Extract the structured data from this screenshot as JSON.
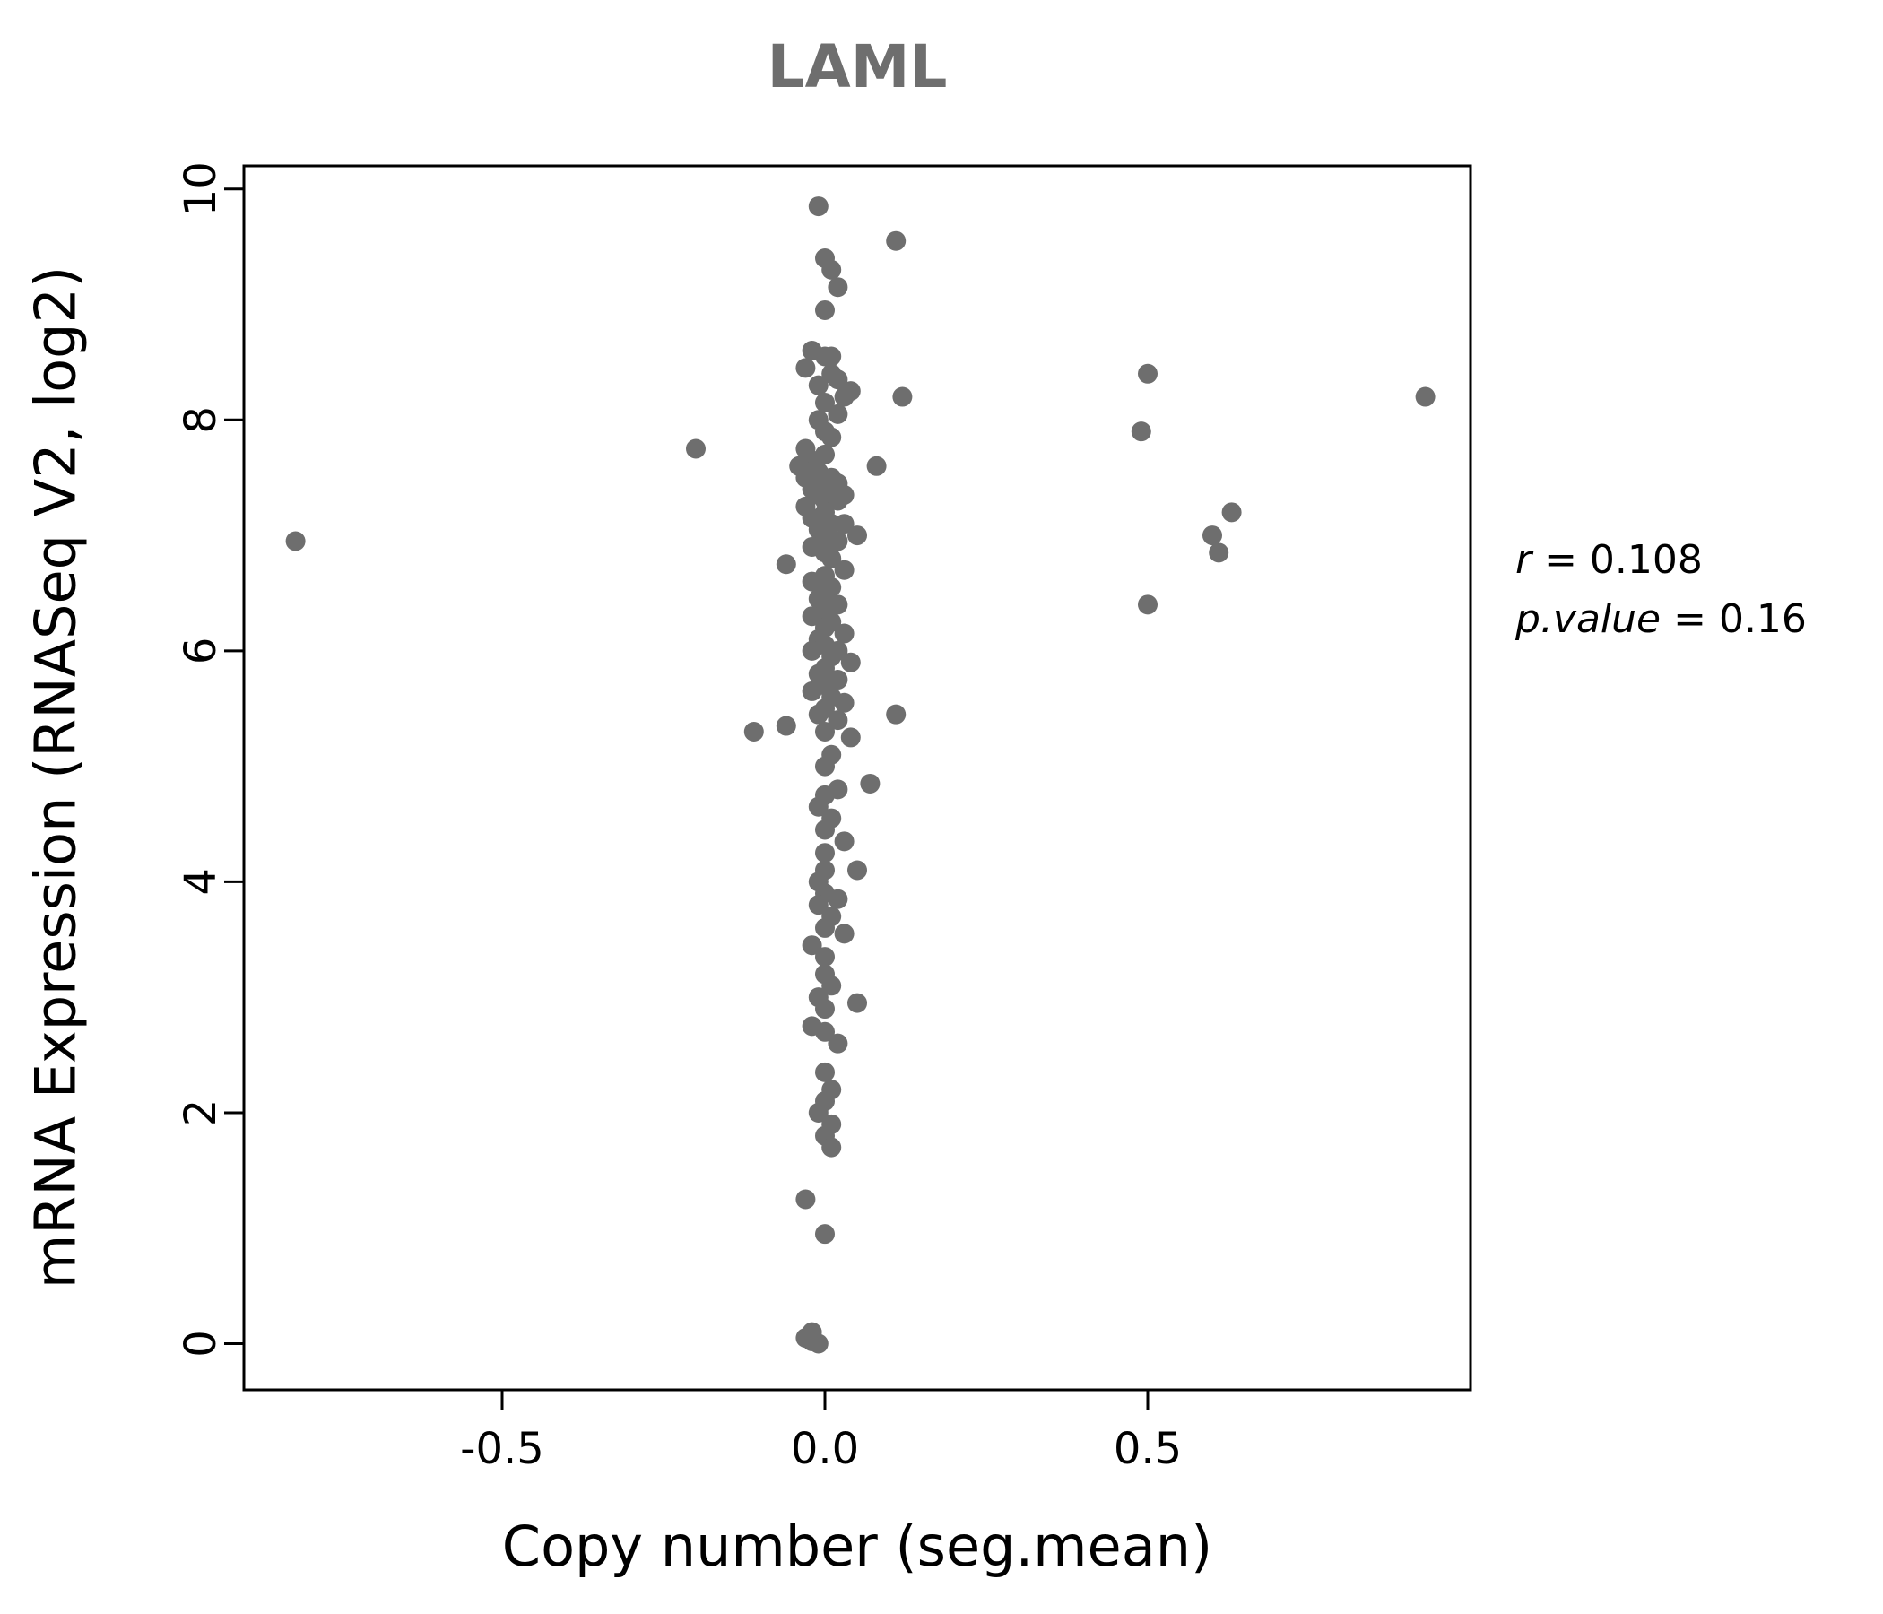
{
  "chart_data": {
    "type": "scatter",
    "title": "LAML",
    "xlabel": "Copy number (seg.mean)",
    "ylabel": "mRNA Expression (RNASeq V2, log2)",
    "xlim": [
      -0.9,
      1.0
    ],
    "ylim": [
      -0.4,
      10.2
    ],
    "xticks": [
      -0.5,
      0.0,
      0.5
    ],
    "yticks": [
      0,
      2,
      4,
      6,
      8,
      10
    ],
    "grid": false,
    "point_color": "#6e6e6e",
    "annotations": [
      {
        "var": "r",
        "rest": " = 0.108"
      },
      {
        "var": "p.value",
        "rest": " = 0.16"
      }
    ],
    "points": [
      [
        -0.01,
        9.85
      ],
      [
        0.11,
        9.55
      ],
      [
        0.0,
        9.4
      ],
      [
        0.01,
        9.3
      ],
      [
        0.02,
        9.15
      ],
      [
        0.0,
        8.95
      ],
      [
        -0.02,
        8.6
      ],
      [
        0.0,
        8.55
      ],
      [
        0.01,
        8.55
      ],
      [
        -0.03,
        8.45
      ],
      [
        0.01,
        8.4
      ],
      [
        0.5,
        8.4
      ],
      [
        0.02,
        8.35
      ],
      [
        -0.01,
        8.3
      ],
      [
        0.04,
        8.25
      ],
      [
        0.12,
        8.2
      ],
      [
        0.93,
        8.2
      ],
      [
        0.03,
        8.2
      ],
      [
        0.0,
        8.15
      ],
      [
        0.02,
        8.05
      ],
      [
        -0.01,
        8.0
      ],
      [
        0.49,
        7.9
      ],
      [
        0.0,
        7.9
      ],
      [
        0.01,
        7.85
      ],
      [
        -0.2,
        7.75
      ],
      [
        -0.03,
        7.75
      ],
      [
        0.0,
        7.7
      ],
      [
        -0.02,
        7.65
      ],
      [
        -0.04,
        7.6
      ],
      [
        0.08,
        7.6
      ],
      [
        -0.01,
        7.55
      ],
      [
        0.01,
        7.5
      ],
      [
        -0.03,
        7.5
      ],
      [
        0.02,
        7.45
      ],
      [
        0.0,
        7.45
      ],
      [
        -0.02,
        7.4
      ],
      [
        0.01,
        7.4
      ],
      [
        0.03,
        7.35
      ],
      [
        -0.01,
        7.35
      ],
      [
        0.0,
        7.3
      ],
      [
        0.02,
        7.3
      ],
      [
        -0.03,
        7.25
      ],
      [
        0.63,
        7.2
      ],
      [
        0.0,
        7.2
      ],
      [
        -0.02,
        7.15
      ],
      [
        0.01,
        7.1
      ],
      [
        0.03,
        7.1
      ],
      [
        -0.01,
        7.05
      ],
      [
        0.0,
        7.0
      ],
      [
        0.6,
        7.0
      ],
      [
        0.05,
        7.0
      ],
      [
        0.02,
        6.95
      ],
      [
        -0.82,
        6.95
      ],
      [
        -0.02,
        6.9
      ],
      [
        0.61,
        6.85
      ],
      [
        0.0,
        6.85
      ],
      [
        0.01,
        6.8
      ],
      [
        -0.06,
        6.75
      ],
      [
        0.03,
        6.7
      ],
      [
        0.0,
        6.65
      ],
      [
        -0.02,
        6.6
      ],
      [
        0.01,
        6.55
      ],
      [
        0.0,
        6.5
      ],
      [
        -0.01,
        6.45
      ],
      [
        0.5,
        6.4
      ],
      [
        0.02,
        6.4
      ],
      [
        0.0,
        6.35
      ],
      [
        -0.02,
        6.3
      ],
      [
        0.01,
        6.25
      ],
      [
        0.0,
        6.2
      ],
      [
        0.03,
        6.15
      ],
      [
        -0.01,
        6.1
      ],
      [
        0.0,
        6.05
      ],
      [
        0.02,
        6.0
      ],
      [
        -0.02,
        6.0
      ],
      [
        0.01,
        5.95
      ],
      [
        0.04,
        5.9
      ],
      [
        0.0,
        5.85
      ],
      [
        -0.01,
        5.8
      ],
      [
        0.02,
        5.75
      ],
      [
        0.0,
        5.7
      ],
      [
        -0.02,
        5.65
      ],
      [
        0.01,
        5.6
      ],
      [
        0.03,
        5.55
      ],
      [
        0.0,
        5.5
      ],
      [
        -0.01,
        5.45
      ],
      [
        0.11,
        5.45
      ],
      [
        0.02,
        5.4
      ],
      [
        -0.06,
        5.35
      ],
      [
        -0.11,
        5.3
      ],
      [
        0.0,
        5.3
      ],
      [
        0.04,
        5.25
      ],
      [
        0.01,
        5.1
      ],
      [
        0.0,
        5.0
      ],
      [
        0.07,
        4.85
      ],
      [
        0.02,
        4.8
      ],
      [
        0.0,
        4.75
      ],
      [
        -0.01,
        4.65
      ],
      [
        0.01,
        4.55
      ],
      [
        0.0,
        4.45
      ],
      [
        0.03,
        4.35
      ],
      [
        0.0,
        4.25
      ],
      [
        0.05,
        4.1
      ],
      [
        0.0,
        4.1
      ],
      [
        -0.01,
        4.0
      ],
      [
        0.0,
        3.9
      ],
      [
        0.02,
        3.85
      ],
      [
        -0.01,
        3.8
      ],
      [
        0.01,
        3.7
      ],
      [
        0.0,
        3.6
      ],
      [
        0.03,
        3.55
      ],
      [
        -0.02,
        3.45
      ],
      [
        0.0,
        3.35
      ],
      [
        0.0,
        3.2
      ],
      [
        0.01,
        3.1
      ],
      [
        -0.01,
        3.0
      ],
      [
        0.05,
        2.95
      ],
      [
        0.0,
        2.9
      ],
      [
        -0.02,
        2.75
      ],
      [
        0.0,
        2.7
      ],
      [
        0.02,
        2.6
      ],
      [
        0.0,
        2.35
      ],
      [
        0.01,
        2.2
      ],
      [
        0.0,
        2.1
      ],
      [
        -0.01,
        2.0
      ],
      [
        0.01,
        1.9
      ],
      [
        0.0,
        1.8
      ],
      [
        0.01,
        1.7
      ],
      [
        -0.03,
        1.25
      ],
      [
        0.0,
        0.95
      ],
      [
        -0.02,
        0.1
      ],
      [
        -0.03,
        0.05
      ],
      [
        -0.01,
        0.0
      ],
      [
        -0.02,
        0.02
      ]
    ]
  }
}
